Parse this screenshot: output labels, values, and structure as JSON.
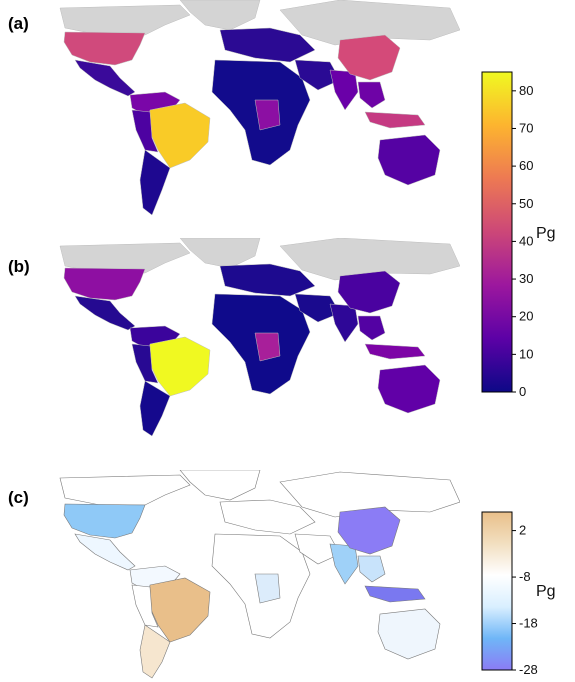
{
  "panels": [
    {
      "label": "(a)"
    },
    {
      "label": "(b)"
    },
    {
      "label": "(c)"
    }
  ],
  "colorbar_top": {
    "unit": "Pg",
    "ticks": [
      "0",
      "10",
      "20",
      "30",
      "40",
      "50",
      "60",
      "70",
      "80"
    ],
    "tick_values": [
      0,
      10,
      20,
      30,
      40,
      50,
      60,
      70,
      80
    ],
    "range": [
      0,
      85
    ],
    "palette": [
      "#0d0887",
      "#5c01a6",
      "#9c179e",
      "#cc4778",
      "#ed7953",
      "#fdb42f",
      "#f0f921"
    ]
  },
  "colorbar_bottom": {
    "unit": "Pg",
    "ticks": [
      "2",
      "-8",
      "-18",
      "-28"
    ],
    "tick_values": [
      2,
      -8,
      -18,
      -28
    ],
    "range": [
      -28,
      6
    ],
    "palette": [
      "#8b7cf5",
      "#6fb6f7",
      "#d9efff",
      "#ffffff",
      "#f2dfc0",
      "#e9bf8a"
    ]
  },
  "colors": {
    "no_data": "#d4d4d4",
    "border": "#7a7a7a"
  }
}
